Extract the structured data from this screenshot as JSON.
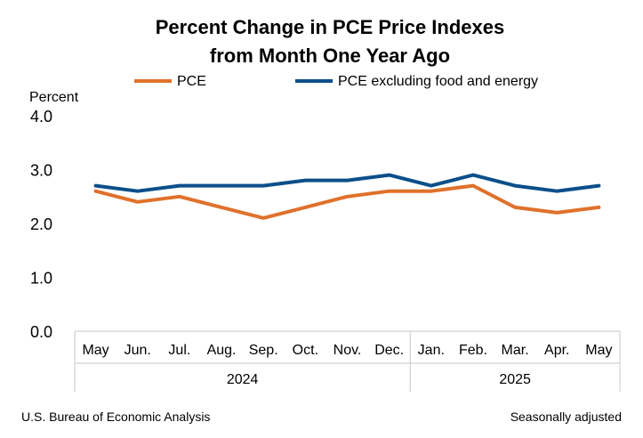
{
  "chart_data": {
    "type": "line",
    "title": [
      "Percent Change in PCE Price Indexes",
      "from Month One Year Ago"
    ],
    "ylabel": "Percent",
    "ylim": [
      0,
      4
    ],
    "yticks": [
      "0.0",
      "1.0",
      "2.0",
      "3.0",
      "4.0"
    ],
    "categories": [
      "May",
      "Jun.",
      "Jul.",
      "Aug.",
      "Sep.",
      "Oct.",
      "Nov.",
      "Dec.",
      "Jan.",
      "Feb.",
      "Mar.",
      "Apr.",
      "May"
    ],
    "year_groups": [
      {
        "label": "2024",
        "start": 0,
        "end": 7
      },
      {
        "label": "2025",
        "start": 8,
        "end": 12
      }
    ],
    "series": [
      {
        "name": "PCE",
        "color": "#E0712B",
        "values": [
          2.6,
          2.4,
          2.5,
          2.3,
          2.1,
          2.3,
          2.5,
          2.6,
          2.6,
          2.7,
          2.3,
          2.2,
          2.3
        ]
      },
      {
        "name": "PCE excluding food and energy",
        "color": "#0B4F8A",
        "values": [
          2.7,
          2.6,
          2.7,
          2.7,
          2.7,
          2.8,
          2.8,
          2.9,
          2.7,
          2.9,
          2.7,
          2.6,
          2.7
        ]
      }
    ],
    "grid": false
  },
  "footer": {
    "source": "U.S. Bureau of Economic Analysis",
    "note": "Seasonally adjusted"
  }
}
